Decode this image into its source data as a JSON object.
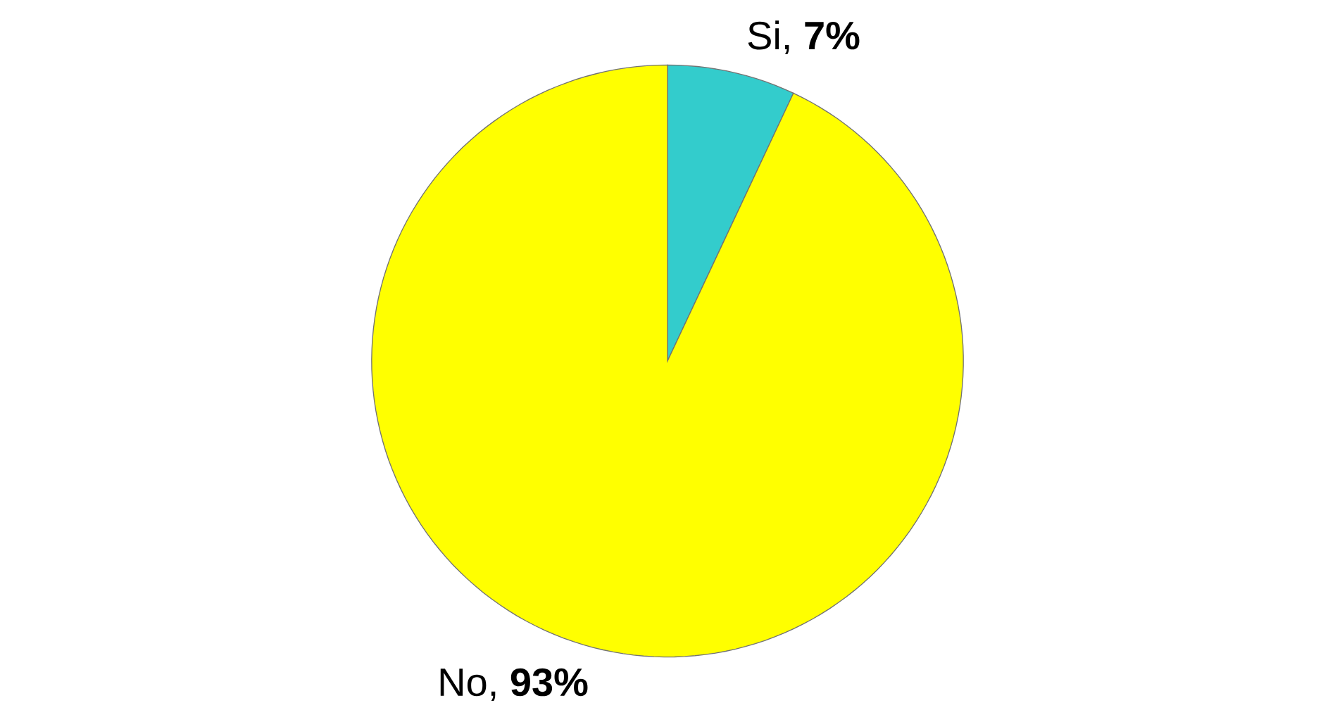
{
  "chart_data": {
    "type": "pie",
    "categories": [
      "Si",
      "No"
    ],
    "values": [
      7,
      93
    ],
    "value_labels": [
      ", **7%**",
      ", **93%**"
    ],
    "colors": [
      "#33cccc",
      "#ffff00"
    ]
  }
}
